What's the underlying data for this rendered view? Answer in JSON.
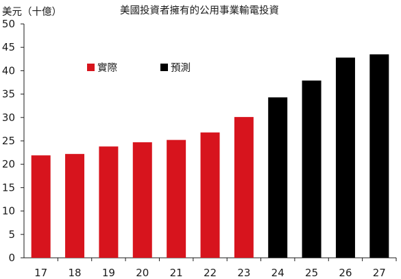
{
  "chart_data": {
    "type": "bar",
    "title": "美國投資者擁有的公用事業輸電投資",
    "ylabel": "美元（十億）",
    "xlabel": "",
    "ylim": [
      0,
      50
    ],
    "yticks": [
      0,
      5,
      10,
      15,
      20,
      25,
      30,
      35,
      40,
      45,
      50
    ],
    "categories": [
      "17",
      "18",
      "19",
      "20",
      "21",
      "22",
      "23",
      "24",
      "25",
      "26",
      "27"
    ],
    "values": [
      21.9,
      22.2,
      23.8,
      24.7,
      25.2,
      26.8,
      30.1,
      34.3,
      37.9,
      42.8,
      43.5
    ],
    "groups": [
      "actual",
      "actual",
      "actual",
      "actual",
      "actual",
      "actual",
      "actual",
      "forecast",
      "forecast",
      "forecast",
      "forecast"
    ],
    "series": [
      {
        "name": "實際",
        "key": "actual",
        "color": "#d7141d"
      },
      {
        "name": "預測",
        "key": "forecast",
        "color": "#000000"
      }
    ],
    "grid": false,
    "legend_position": "top-left"
  }
}
